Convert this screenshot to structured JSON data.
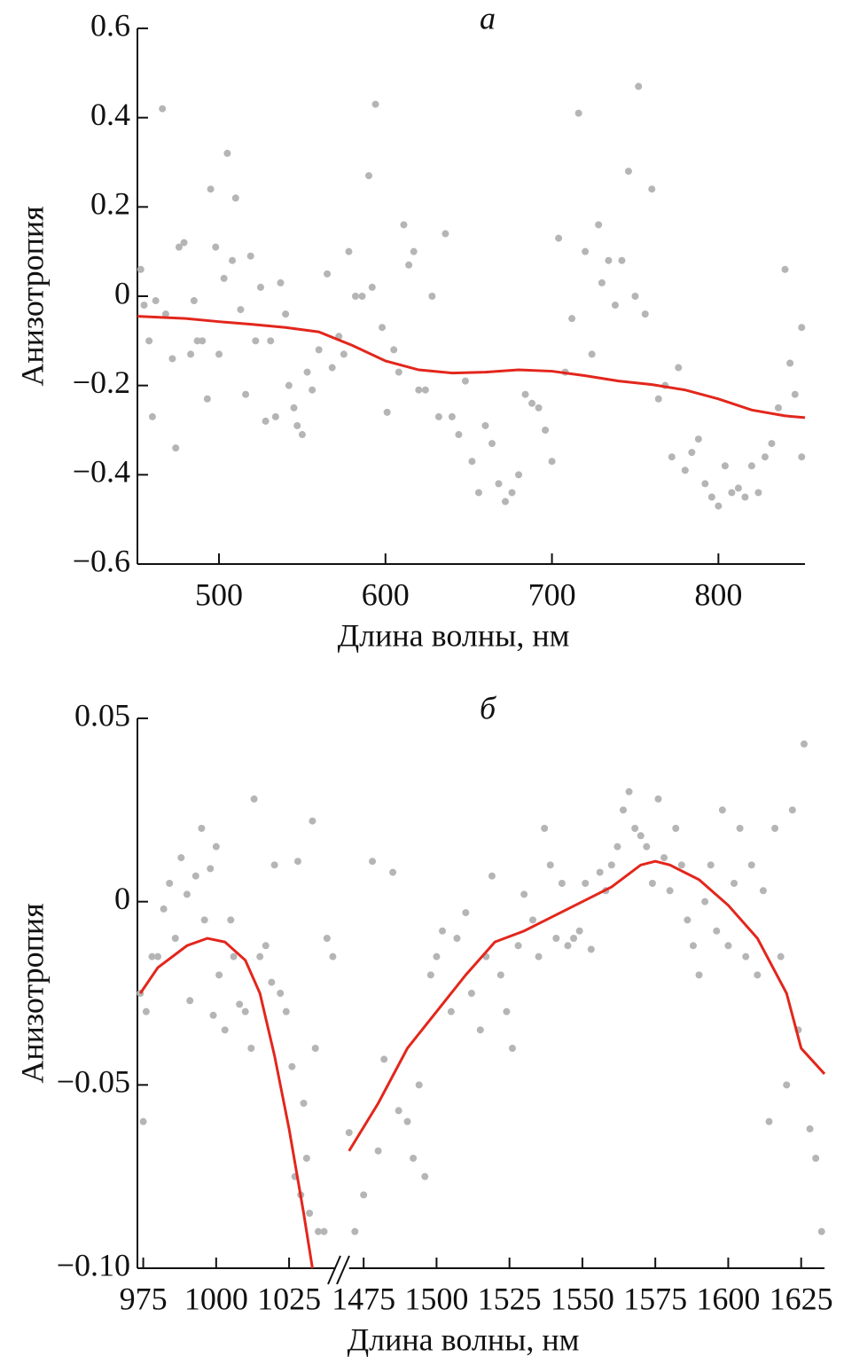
{
  "chart_data": [
    {
      "type": "scatter",
      "title": "а",
      "x_label": "Длина волны, нм",
      "y_label": "Анизотропия",
      "xlim": [
        451,
        852
      ],
      "xticks": [
        500,
        600,
        700,
        800
      ],
      "ylim": [
        -0.6,
        0.6
      ],
      "yticks": [
        {
          "value": -0.6,
          "label": "−0.6"
        },
        {
          "value": -0.4,
          "label": "−0.4"
        },
        {
          "value": -0.2,
          "label": "−0.2"
        },
        0,
        0.2,
        0.4,
        0.6
      ],
      "series": [
        {
          "type": "scatter",
          "color": "#b5b5b5",
          "x": [
            453,
            455,
            458,
            460,
            462,
            466,
            468,
            472,
            474,
            476,
            479,
            483,
            485,
            487,
            490,
            493,
            495,
            498,
            500,
            503,
            505,
            508,
            510,
            513,
            516,
            519,
            522,
            525,
            528,
            531,
            534,
            537,
            540,
            542,
            545,
            547,
            550,
            553,
            556,
            560,
            565,
            568,
            572,
            575,
            578,
            582,
            586,
            590,
            592,
            594,
            598,
            601,
            605,
            608,
            611,
            614,
            617,
            620,
            624,
            628,
            632,
            636,
            640,
            644,
            648,
            652,
            656,
            660,
            664,
            668,
            672,
            676,
            680,
            684,
            688,
            692,
            696,
            700,
            704,
            708,
            712,
            716,
            720,
            724,
            728,
            730,
            734,
            738,
            742,
            746,
            750,
            752,
            756,
            760,
            764,
            768,
            772,
            776,
            780,
            784,
            788,
            792,
            796,
            800,
            804,
            808,
            812,
            816,
            820,
            824,
            828,
            832,
            836,
            840,
            843,
            846,
            850,
            850
          ],
          "values": [
            0.06,
            -0.02,
            -0.1,
            -0.27,
            -0.01,
            0.42,
            -0.04,
            -0.14,
            -0.34,
            0.11,
            0.12,
            -0.13,
            -0.01,
            -0.1,
            -0.1,
            -0.23,
            0.24,
            0.11,
            -0.13,
            0.04,
            0.32,
            0.08,
            0.22,
            -0.03,
            -0.22,
            0.09,
            -0.1,
            0.02,
            -0.28,
            -0.1,
            -0.27,
            0.03,
            -0.04,
            -0.2,
            -0.25,
            -0.29,
            -0.31,
            -0.17,
            -0.21,
            -0.12,
            0.05,
            -0.16,
            -0.09,
            -0.13,
            0.1,
            0.0,
            0.0,
            0.27,
            0.02,
            0.43,
            -0.07,
            -0.26,
            -0.12,
            -0.17,
            0.16,
            0.07,
            0.1,
            -0.21,
            -0.21,
            0.0,
            -0.27,
            0.14,
            -0.27,
            -0.31,
            -0.19,
            -0.37,
            -0.44,
            -0.29,
            -0.33,
            -0.42,
            -0.46,
            -0.44,
            -0.4,
            -0.22,
            -0.24,
            -0.25,
            -0.3,
            -0.37,
            0.13,
            -0.17,
            -0.05,
            0.41,
            0.1,
            -0.13,
            0.16,
            0.03,
            0.08,
            -0.02,
            0.08,
            0.28,
            0.0,
            0.47,
            -0.04,
            0.24,
            -0.23,
            -0.2,
            -0.36,
            -0.16,
            -0.39,
            -0.35,
            -0.32,
            -0.42,
            -0.45,
            -0.47,
            -0.38,
            -0.44,
            -0.43,
            -0.45,
            -0.38,
            -0.44,
            -0.36,
            -0.33,
            -0.25,
            0.06,
            -0.15,
            -0.22,
            -0.07,
            -0.36
          ]
        },
        {
          "type": "line",
          "color": "#e3261c",
          "x": [
            451,
            480,
            500,
            520,
            540,
            560,
            580,
            600,
            620,
            640,
            660,
            680,
            700,
            720,
            740,
            760,
            780,
            800,
            820,
            840,
            852
          ],
          "values": [
            -0.045,
            -0.05,
            -0.057,
            -0.063,
            -0.07,
            -0.08,
            -0.11,
            -0.145,
            -0.165,
            -0.172,
            -0.17,
            -0.165,
            -0.168,
            -0.178,
            -0.19,
            -0.198,
            -0.21,
            -0.23,
            -0.255,
            -0.268,
            -0.272
          ]
        }
      ]
    },
    {
      "type": "scatter",
      "title": "б",
      "x_label": "Длина волны, нм",
      "y_label": "Анизотропия",
      "xlim": [
        [
          973,
          1041
        ],
        [
          1470,
          1633
        ]
      ],
      "xticks": [
        [
          975,
          1000,
          1025
        ],
        [
          1475,
          1500,
          1525,
          1550,
          1575,
          1600,
          1625
        ]
      ],
      "ylim": [
        -0.1,
        0.05
      ],
      "yticks": [
        {
          "value": -0.1,
          "label": "−0.10"
        },
        {
          "value": -0.05,
          "label": "−0.05"
        },
        0,
        0.05
      ],
      "series": [
        {
          "type": "scatter",
          "color": "#b5b5b5",
          "x": [
            974,
            975,
            976,
            978,
            980,
            982,
            984,
            986,
            988,
            990,
            991,
            993,
            995,
            996,
            998,
            999,
            1000,
            1001,
            1003,
            1005,
            1006,
            1008,
            1010,
            1012,
            1013,
            1015,
            1017,
            1019,
            1020,
            1022,
            1024,
            1026,
            1027,
            1028,
            1029,
            1030,
            1031,
            1032,
            1033,
            1034,
            1035,
            1037,
            1038,
            1040,
            1470,
            1472,
            1475,
            1478,
            1480,
            1482,
            1485,
            1487,
            1490,
            1492,
            1494,
            1496,
            1498,
            1500,
            1502,
            1505,
            1507,
            1510,
            1512,
            1515,
            1517,
            1519,
            1522,
            1524,
            1526,
            1528,
            1530,
            1533,
            1535,
            1537,
            1539,
            1541,
            1543,
            1545,
            1547,
            1549,
            1551,
            1553,
            1556,
            1558,
            1560,
            1562,
            1564,
            1566,
            1568,
            1570,
            1572,
            1574,
            1576,
            1578,
            1580,
            1582,
            1584,
            1586,
            1588,
            1590,
            1592,
            1594,
            1596,
            1598,
            1600,
            1602,
            1604,
            1606,
            1608,
            1610,
            1612,
            1614,
            1616,
            1618,
            1620,
            1622,
            1624,
            1626,
            1628,
            1630,
            1632
          ],
          "values": [
            -0.025,
            -0.06,
            -0.03,
            -0.015,
            -0.015,
            -0.002,
            0.005,
            -0.01,
            0.012,
            0.002,
            -0.027,
            0.007,
            0.02,
            -0.005,
            0.009,
            -0.031,
            0.015,
            -0.02,
            -0.035,
            -0.005,
            -0.015,
            -0.028,
            -0.03,
            -0.04,
            0.028,
            -0.015,
            -0.012,
            -0.022,
            0.01,
            -0.025,
            -0.03,
            -0.045,
            -0.075,
            0.011,
            -0.08,
            -0.055,
            -0.07,
            -0.085,
            0.022,
            -0.04,
            -0.09,
            -0.09,
            -0.01,
            -0.015,
            -0.063,
            -0.09,
            -0.08,
            0.011,
            -0.068,
            -0.043,
            0.008,
            -0.057,
            -0.06,
            -0.07,
            -0.05,
            -0.075,
            -0.02,
            -0.015,
            -0.008,
            -0.03,
            -0.01,
            -0.003,
            -0.025,
            -0.035,
            -0.015,
            0.007,
            -0.02,
            -0.03,
            -0.04,
            -0.012,
            0.002,
            -0.005,
            -0.015,
            0.02,
            0.01,
            -0.01,
            0.005,
            -0.012,
            -0.01,
            -0.008,
            0.005,
            -0.013,
            0.008,
            0.003,
            0.01,
            0.015,
            0.025,
            0.03,
            0.02,
            0.018,
            0.015,
            0.005,
            0.028,
            0.012,
            0.003,
            0.02,
            0.01,
            -0.005,
            -0.012,
            -0.02,
            0.0,
            0.01,
            -0.008,
            0.025,
            -0.012,
            0.005,
            0.02,
            -0.015,
            0.01,
            -0.02,
            0.003,
            -0.06,
            0.02,
            -0.015,
            -0.05,
            0.025,
            -0.035,
            0.043,
            -0.062,
            -0.07,
            -0.09
          ]
        },
        {
          "type": "line",
          "color": "#e3261c",
          "x": [
            974,
            980,
            990,
            997,
            1003,
            1010,
            1015,
            1020,
            1025,
            1030,
            1033
          ],
          "values": [
            -0.025,
            -0.018,
            -0.012,
            -0.01,
            -0.011,
            -0.016,
            -0.025,
            -0.042,
            -0.062,
            -0.085,
            -0.1
          ]
        },
        {
          "type": "line",
          "color": "#e3261c",
          "x": [
            1470,
            1480,
            1490,
            1500,
            1510,
            1520,
            1530,
            1540,
            1550,
            1560,
            1570,
            1575,
            1580,
            1590,
            1600,
            1610,
            1620,
            1625,
            1633
          ],
          "values": [
            -0.068,
            -0.055,
            -0.04,
            -0.03,
            -0.02,
            -0.011,
            -0.008,
            -0.004,
            0.0,
            0.004,
            0.01,
            0.011,
            0.01,
            0.006,
            -0.001,
            -0.01,
            -0.025,
            -0.04,
            -0.047
          ]
        }
      ]
    }
  ]
}
